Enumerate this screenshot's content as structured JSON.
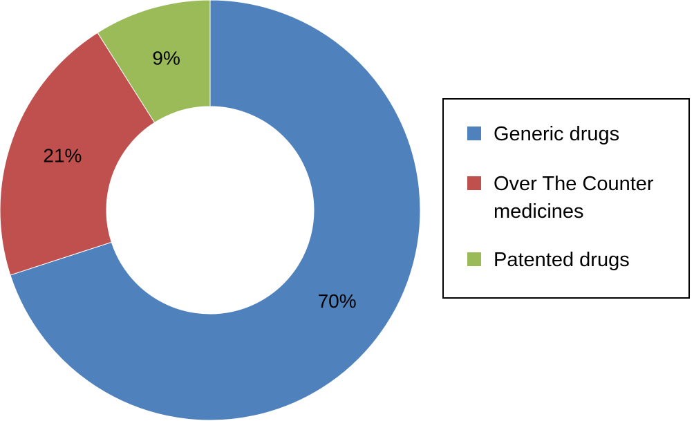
{
  "chart_data": {
    "type": "donut",
    "categories": [
      "Generic drugs",
      "Over The Counter medicines",
      "Patented drugs"
    ],
    "values": [
      70,
      21,
      9
    ],
    "value_labels": [
      "70%",
      "21%",
      "9%"
    ],
    "colors": [
      "#4f81bd",
      "#c0504d",
      "#9bbb59"
    ],
    "legend": "right"
  }
}
